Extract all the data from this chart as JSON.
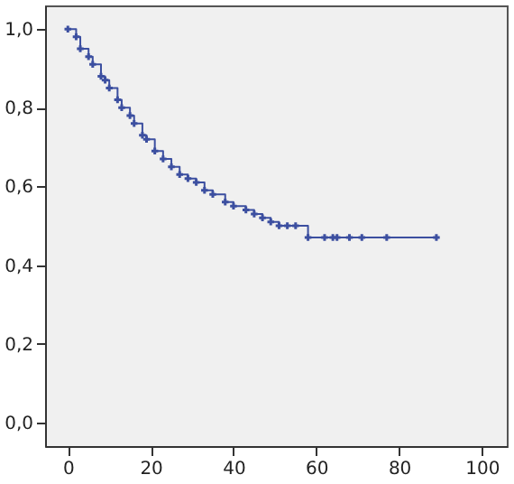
{
  "chart_data": {
    "type": "step",
    "x": [
      0,
      2,
      3,
      5,
      6,
      8,
      9,
      10,
      12,
      13,
      15,
      16,
      18,
      19,
      21,
      23,
      25,
      27,
      29,
      31,
      33,
      35,
      38,
      40,
      43,
      45,
      47,
      49,
      51,
      53,
      55,
      58,
      62,
      64,
      65,
      68,
      71,
      77,
      89
    ],
    "series": [
      {
        "color": "#3c4fa0",
        "values": [
          1.0,
          0.98,
          0.95,
          0.93,
          0.91,
          0.88,
          0.87,
          0.85,
          0.82,
          0.8,
          0.78,
          0.76,
          0.73,
          0.72,
          0.69,
          0.67,
          0.65,
          0.63,
          0.62,
          0.61,
          0.59,
          0.58,
          0.56,
          0.55,
          0.54,
          0.53,
          0.52,
          0.51,
          0.5,
          0.5,
          0.5,
          0.47,
          0.47,
          0.47,
          0.47,
          0.47,
          0.47,
          0.47,
          0.47
        ]
      }
    ],
    "xlim": [
      -5.5,
      106
    ],
    "xticks": [
      0,
      20,
      40,
      60,
      80,
      100
    ],
    "ylim": [
      -0.06,
      1.06
    ],
    "yticks": [
      {
        "value": 0,
        "label": "0,0"
      },
      {
        "value": 0.2,
        "label": "0,2"
      },
      {
        "value": 0.4,
        "label": "0,4"
      },
      {
        "value": 0.6,
        "label": "0,6"
      },
      {
        "value": 0.8,
        "label": "0,8"
      },
      {
        "value": 1.0,
        "label": "1,0"
      }
    ],
    "marker": "cross",
    "line_style": "solid",
    "grid": false
  }
}
